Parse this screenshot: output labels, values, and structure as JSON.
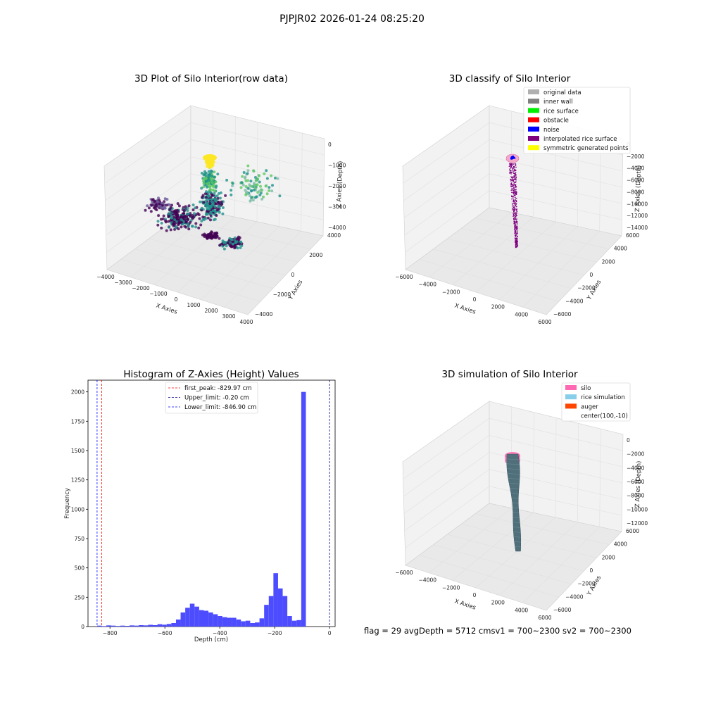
{
  "figure": {
    "suptitle": "PJPJR02 2026-01-24 08:25:20",
    "footer_text": "flag = 29  avgDepth = 5712 cmsv1 = 700~2300  sv2 = 700~2300"
  },
  "chart_data": [
    {
      "type": "scatter",
      "dims": 3,
      "title": "3D Plot of Silo Interior(row data)",
      "xlabel": "X Axies",
      "ylabel": "Y Axies",
      "zlabel": "Z Axies (Depth)",
      "xlim": [
        -4000,
        4000
      ],
      "ylim": [
        -4000,
        4000
      ],
      "zlim": [
        -4000,
        0
      ],
      "x_ticks": [
        "−4000",
        "−3000",
        "−2000",
        "−1000",
        "0",
        "1000",
        "2000",
        "3000",
        "4000"
      ],
      "y_ticks": [
        "−4000",
        "−2000",
        "0",
        "2000",
        "4000"
      ],
      "z_ticks": [
        "0",
        "−1000",
        "−2000",
        "−3000",
        "−4000"
      ],
      "colormap": "viridis (by depth)",
      "colors": {
        "deep": "#440154",
        "mid": "#21918c",
        "high": "#5ec962",
        "top": "#fde725"
      }
    },
    {
      "type": "scatter",
      "dims": 3,
      "title": "3D classify of Silo Interior",
      "xlabel": "X Axies",
      "ylabel": "Y Axies",
      "zlabel": "Z Axies (Depth)",
      "xlim": [
        -6000,
        6000
      ],
      "ylim": [
        -6000,
        6000
      ],
      "zlim": [
        -14000,
        0
      ],
      "x_ticks": [
        "−6000",
        "−4000",
        "−2000",
        "0",
        "2000",
        "4000",
        "6000"
      ],
      "y_ticks": [
        "−6000",
        "−4000",
        "−2000",
        "0",
        "2000",
        "4000",
        "6000"
      ],
      "z_ticks": [
        "0",
        "−2000",
        "−4000",
        "−6000",
        "−8000",
        "−10000",
        "−12000",
        "−14000"
      ],
      "legend_position": "top-right",
      "legend": [
        {
          "label": "original data",
          "color": "#b0b0b0"
        },
        {
          "label": "inner wall",
          "color": "#808080"
        },
        {
          "label": "rice surface",
          "color": "#00ee00"
        },
        {
          "label": "obstacle",
          "color": "#ff0000"
        },
        {
          "label": "noise",
          "color": "#0000ff"
        },
        {
          "label": "interpolated rice surface",
          "color": "#800080"
        },
        {
          "label": "symmetric generated points",
          "color": "#ffff00"
        }
      ]
    },
    {
      "type": "bar",
      "subtype": "histogram",
      "title": "Histogram of Z-Axies (Height) Values",
      "xlabel": "Depth (cm)",
      "ylabel": "Frequency",
      "xlim": [
        -880,
        20
      ],
      "ylim": [
        0,
        2100
      ],
      "x_ticks": [
        -800,
        -600,
        -400,
        -200,
        0
      ],
      "y_ticks": [
        0,
        250,
        500,
        750,
        1000,
        1250,
        1500,
        1750,
        2000
      ],
      "bar_color": "#4d4dff",
      "bin_width": 16.9,
      "bin_start": -846.9,
      "values": [
        8,
        4,
        10,
        8,
        5,
        8,
        6,
        10,
        8,
        12,
        10,
        15,
        12,
        20,
        16,
        22,
        30,
        60,
        120,
        160,
        195,
        170,
        140,
        135,
        120,
        105,
        90,
        80,
        75,
        75,
        60,
        45,
        50,
        30,
        35,
        70,
        185,
        260,
        455,
        325,
        260,
        90,
        50,
        55,
        2000
      ],
      "legend_position": "top-center",
      "vlines": [
        {
          "label": "first_peak: -829.97 cm",
          "x": -829.97,
          "color": "#ff0000",
          "style": "dashed"
        },
        {
          "label": "Upper_limit: -0.20 cm",
          "x": -0.2,
          "color": "#00008b",
          "style": "dashed"
        },
        {
          "label": "Lower_limit: -846.90 cm",
          "x": -846.9,
          "color": "#0000ff",
          "style": "dashed"
        }
      ]
    },
    {
      "type": "surface",
      "dims": 3,
      "title": "3D simulation of Silo Interior",
      "xlabel": "X Axies",
      "ylabel": "Y Axies",
      "zlabel": "Z Axies (Depth)",
      "xlim": [
        -6000,
        6000
      ],
      "ylim": [
        -6000,
        6000
      ],
      "zlim": [
        -12000,
        0
      ],
      "x_ticks": [
        "−6000",
        "−4000",
        "−2000",
        "0",
        "2000",
        "4000",
        "6000"
      ],
      "y_ticks": [
        "−6000",
        "−4000",
        "−2000",
        "0",
        "2000",
        "4000",
        "6000"
      ],
      "z_ticks": [
        "0",
        "−2000",
        "−4000",
        "−6000",
        "−8000",
        "−10000",
        "−12000"
      ],
      "legend_position": "top-right",
      "legend": [
        {
          "label": "silo",
          "color": "#ff69b4"
        },
        {
          "label": "rice simulation",
          "color": "#87ceeb"
        },
        {
          "label": "auger",
          "color": "#ff4500"
        },
        {
          "label": "center(100,-10)",
          "color": ""
        }
      ]
    }
  ]
}
